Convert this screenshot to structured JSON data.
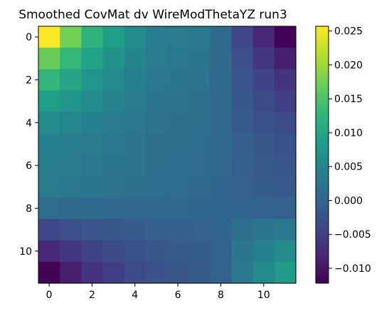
{
  "chart_data": {
    "type": "heatmap",
    "title": "Smoothed CovMat dv WireModThetaYZ run3",
    "xlabel": "",
    "ylabel": "",
    "x_ticks": [
      "0",
      "2",
      "4",
      "6",
      "8",
      "10"
    ],
    "y_ticks": [
      "0",
      "2",
      "4",
      "6",
      "8",
      "10"
    ],
    "colorbar": {
      "min": -0.0122,
      "max": 0.0257,
      "tick_values": [
        -0.01,
        -0.005,
        0.0,
        0.005,
        0.01,
        0.015,
        0.02,
        0.025
      ],
      "tick_labels": [
        "−0.010",
        "−0.005",
        "0.000",
        "0.005",
        "0.010",
        "0.015",
        "0.020",
        "0.025"
      ]
    },
    "colormap": [
      "#440154",
      "#482878",
      "#3e4989",
      "#31688e",
      "#26828e",
      "#1f9e89",
      "#35b779",
      "#6ece58",
      "#b5de2b",
      "#fde725"
    ],
    "matrix": [
      [
        0.0255,
        0.0175,
        0.012,
        0.009,
        0.006,
        0.004,
        0.0035,
        0.003,
        0.001,
        -0.004,
        -0.008,
        -0.012
      ],
      [
        0.017,
        0.013,
        0.0095,
        0.007,
        0.005,
        0.0035,
        0.003,
        0.0025,
        0.001,
        -0.003,
        -0.006,
        -0.009
      ],
      [
        0.0125,
        0.01,
        0.0075,
        0.0058,
        0.0042,
        0.003,
        0.0025,
        0.002,
        0.0008,
        -0.0022,
        -0.0045,
        -0.0065
      ],
      [
        0.009,
        0.0075,
        0.006,
        0.0048,
        0.0035,
        0.0025,
        0.002,
        0.0018,
        0.0006,
        -0.0018,
        -0.0035,
        -0.005
      ],
      [
        0.006,
        0.0052,
        0.0045,
        0.0036,
        0.0028,
        0.002,
        0.0017,
        0.0015,
        0.0005,
        -0.0012,
        -0.0025,
        -0.0035
      ],
      [
        0.0045,
        0.004,
        0.0035,
        0.0028,
        0.0022,
        0.0018,
        0.0015,
        0.0012,
        0.0004,
        -0.0008,
        -0.0018,
        -0.0025
      ],
      [
        0.004,
        0.0035,
        0.003,
        0.0025,
        0.002,
        0.0016,
        0.0014,
        0.0011,
        0.0004,
        -0.0006,
        -0.0014,
        -0.002
      ],
      [
        0.0035,
        0.003,
        0.0025,
        0.0022,
        0.0018,
        0.0014,
        0.0012,
        0.001,
        0.0003,
        -0.0004,
        -0.001,
        -0.0015
      ],
      [
        0.0012,
        0.001,
        0.0008,
        0.0006,
        0.0005,
        0.0004,
        0.0004,
        0.0003,
        0.0002,
        0.0,
        -0.0002,
        -0.0003
      ],
      [
        -0.004,
        -0.003,
        -0.0022,
        -0.0018,
        -0.0012,
        -0.0008,
        -0.0006,
        -0.0004,
        0.0,
        0.0015,
        0.0025,
        0.003
      ],
      [
        -0.008,
        -0.006,
        -0.0045,
        -0.0035,
        -0.0025,
        -0.0018,
        -0.0014,
        -0.001,
        -0.0002,
        0.0025,
        0.0045,
        0.006
      ],
      [
        -0.012,
        -0.009,
        -0.0065,
        -0.005,
        -0.0035,
        -0.0025,
        -0.002,
        -0.0015,
        -0.0003,
        0.003,
        0.006,
        0.0085
      ]
    ]
  }
}
